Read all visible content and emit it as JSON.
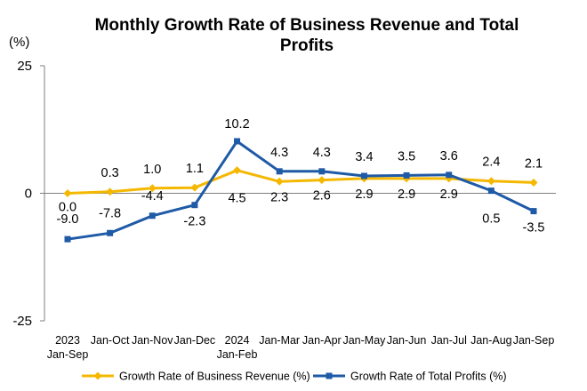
{
  "chart_data": {
    "type": "line",
    "title_line1": "Monthly Growth Rate of Business Revenue and Total",
    "title_line2": "Profits",
    "ylabel": "(%)",
    "ylim": [
      -25,
      25
    ],
    "yticks": [
      25,
      0,
      -25
    ],
    "grid": false,
    "legend_position": "bottom",
    "categories": [
      {
        "line1": "2023",
        "line2": "Jan-Sep"
      },
      {
        "line1": "Jan-Oct",
        "line2": ""
      },
      {
        "line1": "Jan-Nov",
        "line2": ""
      },
      {
        "line1": "Jan-Dec",
        "line2": ""
      },
      {
        "line1": "2024",
        "line2": "Jan-Feb"
      },
      {
        "line1": "Jan-Mar",
        "line2": ""
      },
      {
        "line1": "Jan-Apr",
        "line2": ""
      },
      {
        "line1": "Jan-May",
        "line2": ""
      },
      {
        "line1": "Jan-Jun",
        "line2": ""
      },
      {
        "line1": "Jan-Jul",
        "line2": ""
      },
      {
        "line1": "Jan-Aug",
        "line2": ""
      },
      {
        "line1": "Jan-Sep",
        "line2": ""
      }
    ],
    "series": [
      {
        "name": "Growth Rate of Business Revenue (%)",
        "color": "#F5B800",
        "marker": "diamond",
        "values": [
          0.0,
          0.3,
          1.0,
          1.1,
          4.5,
          2.3,
          2.6,
          2.9,
          2.9,
          2.9,
          2.4,
          2.1
        ],
        "labels": [
          "0.0",
          "0.3",
          "1.0",
          "1.1",
          "4.5",
          "2.3",
          "2.6",
          "2.9",
          "2.9",
          "2.9",
          "2.4",
          "2.1"
        ]
      },
      {
        "name": "Growth Rate of Total Profits (%)",
        "color": "#1F5AA6",
        "marker": "square",
        "values": [
          -9.0,
          -7.8,
          -4.4,
          -2.3,
          10.2,
          4.3,
          4.3,
          3.4,
          3.5,
          3.6,
          0.5,
          -3.5
        ],
        "labels": [
          "-9.0",
          "-7.8",
          "-4.4",
          "-2.3",
          "10.2",
          "4.3",
          "4.3",
          "3.4",
          "3.5",
          "3.6",
          "0.5",
          "-3.5"
        ]
      }
    ]
  }
}
